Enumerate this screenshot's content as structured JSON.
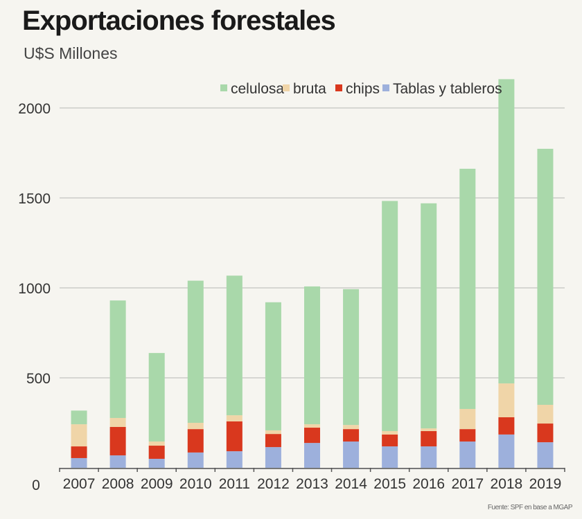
{
  "title": "Exportaciones forestales",
  "subtitle": "U$S Millones",
  "source": "Fuente: SPF en base a MGAP",
  "chart_data": {
    "type": "bar",
    "stacked": true,
    "title": "Exportaciones forestales",
    "ylabel": "U$S Millones",
    "ylim": [
      0,
      2200
    ],
    "yticks": [
      0,
      500,
      1000,
      1500,
      2000
    ],
    "grid": true,
    "legend_position": "top-right",
    "categories": [
      "2007",
      "2008",
      "2009",
      "2010",
      "2011",
      "2012",
      "2013",
      "2014",
      "2015",
      "2016",
      "2017",
      "2018",
      "2019"
    ],
    "series": [
      {
        "name": "Tablas y tableros",
        "color": "#9db0dc",
        "values": [
          54,
          69,
          50,
          85,
          92,
          115,
          138,
          146,
          119,
          119,
          146,
          185,
          142
        ]
      },
      {
        "name": "chips",
        "color": "#d9381e",
        "values": [
          65,
          158,
          73,
          130,
          166,
          73,
          85,
          69,
          66,
          85,
          69,
          96,
          104
        ]
      },
      {
        "name": "bruta",
        "color": "#f0d5a8",
        "values": [
          123,
          50,
          23,
          35,
          34,
          20,
          19,
          23,
          19,
          15,
          112,
          188,
          104
        ]
      },
      {
        "name": "celulosa",
        "color": "#a9d8aa",
        "values": [
          76,
          653,
          492,
          790,
          776,
          712,
          766,
          755,
          1279,
          1251,
          1335,
          1691,
          1423
        ]
      }
    ],
    "legend_order": [
      "celulosa",
      "bruta",
      "chips",
      "Tablas y tableros"
    ]
  }
}
